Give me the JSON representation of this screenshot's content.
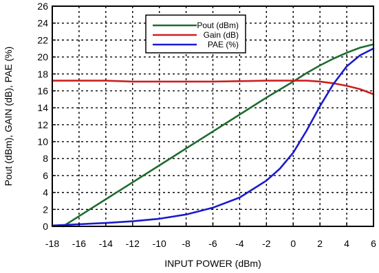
{
  "chart_data": {
    "type": "line",
    "title": "",
    "xlabel": "INPUT POWER (dBm)",
    "ylabel": "Pout (dBm), GAIN (dB), PAE (%)",
    "xlim": [
      -18,
      6
    ],
    "ylim": [
      0,
      26
    ],
    "xticks": [
      -18,
      -16,
      -14,
      -12,
      -10,
      -8,
      -6,
      -4,
      -2,
      0,
      2,
      4,
      6
    ],
    "yticks": [
      0,
      2,
      4,
      6,
      8,
      10,
      12,
      14,
      16,
      18,
      20,
      22,
      24,
      26
    ],
    "grid": true,
    "legend_position": "top-right",
    "series": [
      {
        "name": "Pout (dBm)",
        "color": "#1e6b2e",
        "x": [
          -17.2,
          -16,
          -14,
          -12,
          -10,
          -8,
          -6,
          -4,
          -2,
          0,
          1,
          2,
          3,
          4,
          5,
          6
        ],
        "y": [
          0,
          1.2,
          3.2,
          5.2,
          7.2,
          9.2,
          11.2,
          13.2,
          15.2,
          17.1,
          18.1,
          19.0,
          19.8,
          20.5,
          21.1,
          21.5
        ]
      },
      {
        "name": "Gain (dB)",
        "color": "#cc1f1f",
        "x": [
          -18,
          -16,
          -14,
          -12,
          -10,
          -8,
          -6,
          -4,
          -2,
          0,
          1,
          2,
          3,
          4,
          5,
          6
        ],
        "y": [
          17.2,
          17.2,
          17.2,
          17.1,
          17.1,
          17.1,
          17.1,
          17.15,
          17.2,
          17.2,
          17.2,
          17.1,
          16.9,
          16.6,
          16.2,
          15.6
        ]
      },
      {
        "name": "PAE (%)",
        "color": "#1a1acc",
        "x": [
          -18,
          -16,
          -14,
          -12,
          -10,
          -8,
          -6,
          -4,
          -2,
          -1,
          0,
          1,
          2,
          3,
          4,
          5,
          6
        ],
        "y": [
          0.1,
          0.25,
          0.4,
          0.6,
          0.9,
          1.4,
          2.2,
          3.4,
          5.4,
          6.8,
          8.7,
          11.3,
          14.2,
          16.8,
          18.9,
          20.2,
          21.0
        ]
      }
    ]
  }
}
